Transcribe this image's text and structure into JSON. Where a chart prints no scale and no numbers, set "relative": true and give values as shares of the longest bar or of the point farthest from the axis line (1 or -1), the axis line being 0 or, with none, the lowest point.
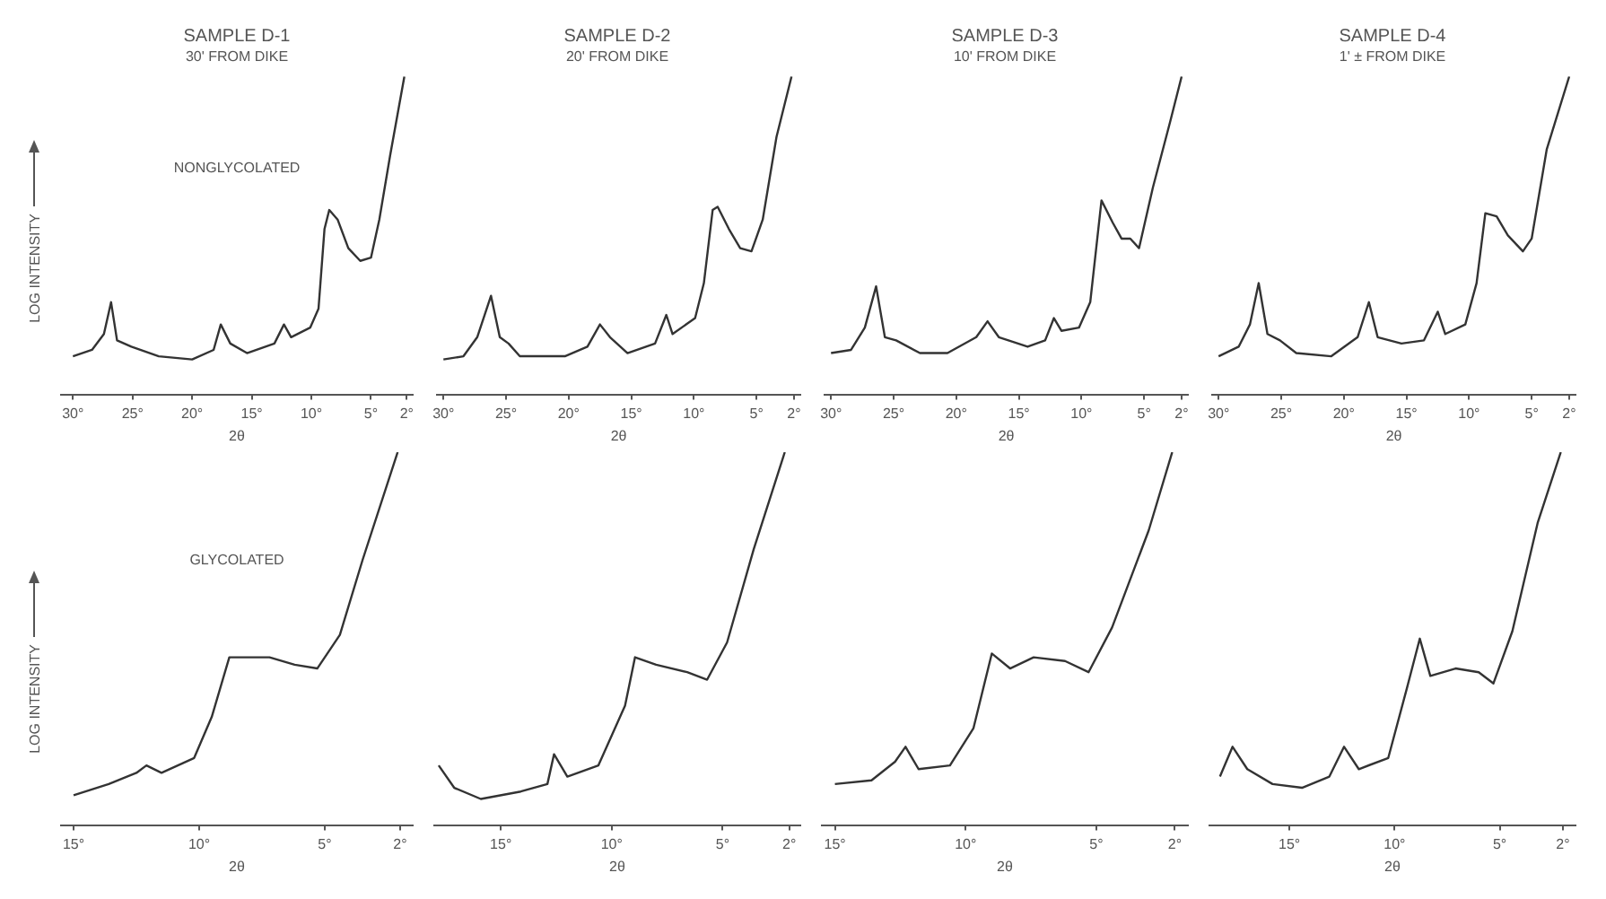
{
  "chart_data": [
    {
      "type": "line",
      "title": "SAMPLE D-1",
      "subtitle": "30' FROM DIKE",
      "xlabel": "2θ",
      "ylabel": "LOG INTENSITY",
      "annotations": [
        "NONGLYCOLATED"
      ],
      "relative": true,
      "color": "#333333",
      "x": [
        30,
        28.4,
        27.4,
        26.8,
        26.3,
        25.1,
        22.8,
        20.0,
        18.2,
        17.6,
        16.8,
        15.4,
        13.1,
        12.3,
        11.7,
        10.1,
        9.4,
        8.9,
        8.5,
        7.8,
        6.9,
        5.9,
        5.0,
        4.3,
        3.4,
        2.2
      ],
      "values": [
        0.12,
        0.14,
        0.19,
        0.29,
        0.17,
        0.15,
        0.12,
        0.11,
        0.14,
        0.22,
        0.16,
        0.13,
        0.16,
        0.22,
        0.18,
        0.21,
        0.27,
        0.52,
        0.58,
        0.55,
        0.46,
        0.42,
        0.43,
        0.55,
        0.75,
        1.0
      ],
      "xlim": [
        31,
        1.5
      ],
      "xticks": [
        {
          "value": 30,
          "label": "30°"
        },
        {
          "value": 25,
          "label": "25°"
        },
        {
          "value": 20,
          "label": "20°"
        },
        {
          "value": 15,
          "label": "15°"
        },
        {
          "value": 10,
          "label": "10°"
        },
        {
          "value": 5,
          "label": "5°"
        },
        {
          "value": 2,
          "label": "2°"
        }
      ]
    },
    {
      "type": "line",
      "title": "SAMPLE D-2",
      "subtitle": "20' FROM DIKE",
      "xlabel": "2θ",
      "relative": true,
      "color": "#333333",
      "x": [
        30,
        28.4,
        27.3,
        26.2,
        25.5,
        24.8,
        23.9,
        20.3,
        18.5,
        17.5,
        16.7,
        15.3,
        13.1,
        12.2,
        11.7,
        9.9,
        9.2,
        8.5,
        8.1,
        7.2,
        6.3,
        5.4,
        4.5,
        3.4,
        2.2
      ],
      "values": [
        0.11,
        0.12,
        0.18,
        0.31,
        0.18,
        0.16,
        0.12,
        0.12,
        0.15,
        0.22,
        0.18,
        0.13,
        0.16,
        0.25,
        0.19,
        0.24,
        0.35,
        0.58,
        0.59,
        0.52,
        0.46,
        0.45,
        0.55,
        0.81,
        1.0
      ],
      "xlim": [
        30.5,
        1.5
      ],
      "xticks": [
        {
          "value": 30,
          "label": "30°"
        },
        {
          "value": 25,
          "label": "25°"
        },
        {
          "value": 20,
          "label": "20°"
        },
        {
          "value": 15,
          "label": "15°"
        },
        {
          "value": 10,
          "label": "10°"
        },
        {
          "value": 5,
          "label": "5°"
        },
        {
          "value": 2,
          "label": "2°"
        }
      ]
    },
    {
      "type": "line",
      "title": "SAMPLE D-3",
      "subtitle": "10' FROM DIKE",
      "xlabel": "2θ",
      "relative": true,
      "color": "#333333",
      "x": [
        30,
        28.4,
        27.3,
        26.4,
        25.7,
        24.8,
        22.9,
        20.7,
        18.4,
        17.5,
        16.6,
        14.3,
        12.9,
        12.2,
        11.6,
        10.2,
        9.3,
        8.4,
        7.5,
        6.8,
        6.1,
        5.4,
        4.3,
        2.9,
        2.0
      ],
      "values": [
        0.13,
        0.14,
        0.21,
        0.34,
        0.18,
        0.17,
        0.13,
        0.13,
        0.18,
        0.23,
        0.18,
        0.15,
        0.17,
        0.24,
        0.2,
        0.21,
        0.29,
        0.61,
        0.54,
        0.49,
        0.49,
        0.46,
        0.65,
        0.86,
        1.0
      ],
      "xlim": [
        30.5,
        1.5
      ],
      "xticks": [
        {
          "value": 30,
          "label": "30°"
        },
        {
          "value": 25,
          "label": "25°"
        },
        {
          "value": 20,
          "label": "20°"
        },
        {
          "value": 15,
          "label": "15°"
        },
        {
          "value": 10,
          "label": "10°"
        },
        {
          "value": 5,
          "label": "5°"
        },
        {
          "value": 2,
          "label": "2°"
        }
      ]
    },
    {
      "type": "line",
      "title": "SAMPLE D-4",
      "subtitle": "1' ± FROM DIKE",
      "xlabel": "2θ",
      "relative": true,
      "color": "#333333",
      "x": [
        30,
        28.4,
        27.5,
        26.8,
        26.1,
        25.1,
        23.8,
        21.0,
        18.9,
        18.0,
        17.3,
        15.4,
        13.6,
        12.5,
        11.9,
        10.3,
        9.4,
        8.7,
        7.8,
        6.9,
        5.7,
        5.0,
        3.8,
        2.0
      ],
      "values": [
        0.12,
        0.15,
        0.22,
        0.35,
        0.19,
        0.17,
        0.13,
        0.12,
        0.18,
        0.29,
        0.18,
        0.16,
        0.17,
        0.26,
        0.19,
        0.22,
        0.35,
        0.57,
        0.56,
        0.5,
        0.45,
        0.49,
        0.77,
        1.0
      ],
      "xlim": [
        30.5,
        1.5
      ],
      "xticks": [
        {
          "value": 30,
          "label": "30°"
        },
        {
          "value": 25,
          "label": "25°"
        },
        {
          "value": 20,
          "label": "20°"
        },
        {
          "value": 15,
          "label": "15°"
        },
        {
          "value": 10,
          "label": "10°"
        },
        {
          "value": 5,
          "label": "5°"
        },
        {
          "value": 2,
          "label": "2°"
        }
      ]
    },
    {
      "type": "line",
      "xlabel": "2θ",
      "ylabel": "LOG INTENSITY",
      "annotations": [
        "GLYCOLATED"
      ],
      "relative": true,
      "color": "#333333",
      "x": [
        15.0,
        13.6,
        12.5,
        12.1,
        11.5,
        10.2,
        9.5,
        8.8,
        8.3,
        7.2,
        6.2,
        5.3,
        4.4,
        3.5,
        2.1
      ],
      "values": [
        0.08,
        0.11,
        0.14,
        0.16,
        0.14,
        0.18,
        0.29,
        0.45,
        0.45,
        0.45,
        0.43,
        0.42,
        0.51,
        0.71,
        1.0
      ],
      "xlim": [
        15.5,
        1.5
      ],
      "xticks": [
        {
          "value": 15,
          "label": "15°"
        },
        {
          "value": 10,
          "label": "10°"
        },
        {
          "value": 5,
          "label": "5°"
        },
        {
          "value": 2,
          "label": "2°"
        }
      ]
    },
    {
      "type": "line",
      "xlabel": "2θ",
      "relative": true,
      "color": "#333333",
      "x": [
        17.8,
        17.1,
        15.9,
        14.1,
        12.9,
        12.6,
        12.0,
        10.6,
        9.4,
        8.95,
        8.0,
        6.6,
        5.7,
        4.8,
        3.6,
        2.2
      ],
      "values": [
        0.16,
        0.1,
        0.07,
        0.09,
        0.11,
        0.19,
        0.13,
        0.16,
        0.32,
        0.45,
        0.43,
        0.41,
        0.39,
        0.49,
        0.74,
        1.0
      ],
      "xlim": [
        18,
        1.5
      ],
      "xticks": [
        {
          "value": 15,
          "label": "15°"
        },
        {
          "value": 10,
          "label": "10°"
        },
        {
          "value": 5,
          "label": "5°"
        },
        {
          "value": 2,
          "label": "2°"
        }
      ]
    },
    {
      "type": "line",
      "xlabel": "2θ",
      "relative": true,
      "color": "#333333",
      "x": [
        15,
        13.6,
        12.7,
        12.3,
        11.8,
        10.6,
        9.7,
        9.0,
        8.3,
        7.4,
        6.2,
        5.3,
        4.4,
        3.0,
        2.1
      ],
      "values": [
        0.11,
        0.12,
        0.17,
        0.21,
        0.15,
        0.16,
        0.26,
        0.46,
        0.42,
        0.45,
        0.44,
        0.41,
        0.53,
        0.79,
        1.0
      ],
      "xlim": [
        15.5,
        1.5
      ],
      "xticks": [
        {
          "value": 15,
          "label": "15°"
        },
        {
          "value": 10,
          "label": "10°"
        },
        {
          "value": 5,
          "label": "5°"
        },
        {
          "value": 2,
          "label": "2°"
        }
      ]
    },
    {
      "type": "line",
      "xlabel": "2θ",
      "relative": true,
      "color": "#333333",
      "x": [
        18.3,
        17.7,
        17.0,
        15.8,
        14.4,
        13.1,
        12.4,
        11.7,
        10.3,
        9.4,
        8.8,
        8.3,
        7.1,
        6.0,
        5.3,
        4.4,
        3.2,
        2.1
      ],
      "values": [
        0.13,
        0.21,
        0.15,
        0.11,
        0.1,
        0.13,
        0.21,
        0.15,
        0.18,
        0.37,
        0.5,
        0.4,
        0.42,
        0.41,
        0.38,
        0.52,
        0.81,
        1.0
      ],
      "xlim": [
        18.8,
        1.4
      ],
      "xticks": [
        {
          "value": 15,
          "label": "15°"
        },
        {
          "value": 10,
          "label": "10°"
        },
        {
          "value": 5,
          "label": "5°"
        },
        {
          "value": 2,
          "label": "2°"
        }
      ]
    }
  ]
}
